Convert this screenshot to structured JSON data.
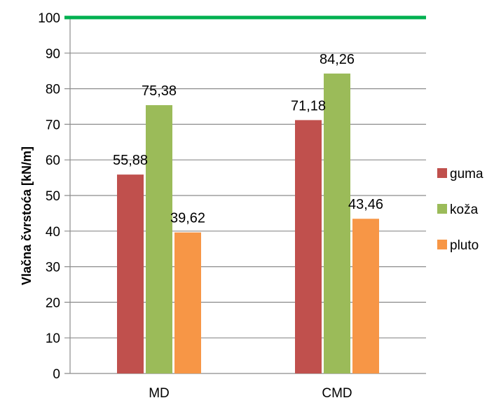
{
  "chart_data": {
    "type": "bar",
    "categories": [
      "MD",
      "CMD"
    ],
    "series": [
      {
        "name": "guma",
        "values": [
          55.88,
          71.18
        ],
        "labels": [
          "55,88",
          "71,18"
        ],
        "color": "#c0504d"
      },
      {
        "name": "koža",
        "values": [
          75.38,
          84.26
        ],
        "labels": [
          "75,38",
          "84,26"
        ],
        "color": "#9bbb59"
      },
      {
        "name": "pluto",
        "values": [
          39.62,
          43.46
        ],
        "labels": [
          "39,62",
          "43,46"
        ],
        "color": "#f79646"
      }
    ],
    "ylabel": "Vlačna čvrstoća [kN/m]",
    "xlabel": "",
    "ylim": [
      0,
      100
    ],
    "yticks": [
      0,
      10,
      20,
      30,
      40,
      50,
      60,
      70,
      80,
      90,
      100
    ],
    "grid": true,
    "legend_position": "right",
    "reference_line": {
      "value": 100,
      "color": "#00b050"
    }
  }
}
